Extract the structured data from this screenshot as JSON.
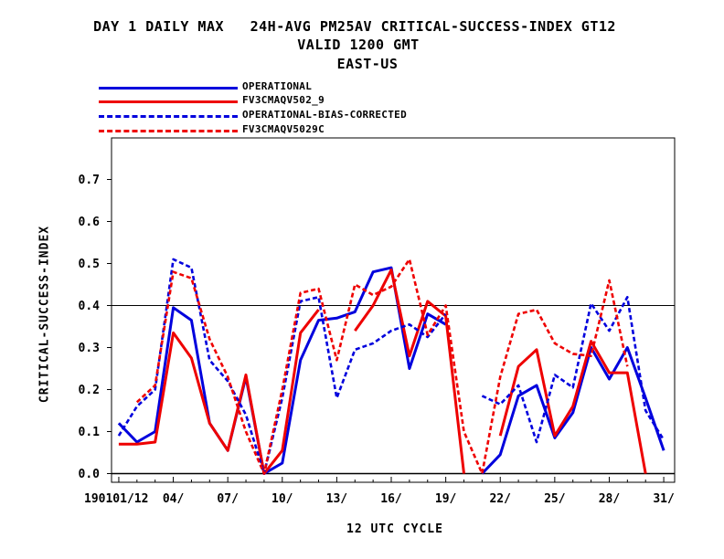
{
  "title": {
    "line1": "DAY 1 DAILY MAX   24H-AVG PM25AV CRITICAL-SUCCESS-INDEX GT12",
    "line2": "VALID 1200 GMT",
    "line3": "EAST-US"
  },
  "chart_data": {
    "type": "line",
    "xlabel": "12 UTC CYCLE",
    "ylabel": "CRITICAL-SUCCESS-INDEX",
    "ylim": [
      0.0,
      0.8
    ],
    "xlim": [
      0.6,
      31.6
    ],
    "yticks": [
      0.0,
      0.1,
      0.2,
      0.3,
      0.4,
      0.5,
      0.6,
      0.7
    ],
    "ytick_labels": [
      "0.0",
      "0.1",
      "0.2",
      "0.3",
      "0.4",
      "0.5",
      "0.6",
      "0.7"
    ],
    "xticks": [
      1,
      4,
      7,
      10,
      13,
      16,
      19,
      22,
      25,
      28,
      31
    ],
    "xtick_labels": [
      "190101/12",
      "04/",
      "07/",
      "10/",
      "13/",
      "16/",
      "19/",
      "22/",
      "25/",
      "28/",
      "31/"
    ],
    "reference_line": 0.4,
    "grid": false,
    "legend_position": "top-left, above plot",
    "x": [
      1,
      2,
      3,
      4,
      5,
      6,
      7,
      8,
      9,
      10,
      11,
      12,
      13,
      14,
      15,
      16,
      17,
      18,
      19,
      20,
      21,
      22,
      23,
      24,
      25,
      26,
      27,
      28,
      29,
      30,
      31
    ],
    "series": [
      {
        "name": "OPERATIONAL",
        "color": "#0000dd",
        "dash": "solid",
        "values": [
          0.12,
          0.075,
          0.1,
          0.395,
          0.365,
          0.12,
          0.055,
          0.23,
          0.0,
          0.025,
          0.27,
          0.365,
          0.37,
          0.385,
          0.48,
          0.49,
          0.25,
          0.38,
          0.355,
          null,
          0.0,
          0.045,
          0.185,
          0.21,
          0.085,
          0.145,
          0.3,
          0.225,
          0.3,
          0.18,
          0.055
        ]
      },
      {
        "name": "FV3CMAQV502_9",
        "color": "#ee0000",
        "dash": "solid",
        "values": [
          0.07,
          0.07,
          0.075,
          0.335,
          0.275,
          0.12,
          0.055,
          0.235,
          0.0,
          0.055,
          0.335,
          0.39,
          null,
          0.34,
          0.4,
          0.485,
          0.28,
          0.41,
          0.375,
          0.0,
          null,
          0.09,
          0.255,
          0.295,
          0.09,
          0.16,
          0.315,
          0.24,
          0.24,
          0.0,
          null
        ]
      },
      {
        "name": "OPERATIONAL-BIAS-CORRECTED",
        "color": "#0000dd",
        "dash": "dashed",
        "values": [
          0.09,
          0.16,
          0.2,
          0.51,
          0.49,
          0.27,
          0.22,
          0.14,
          0.0,
          0.18,
          0.41,
          0.42,
          0.18,
          0.295,
          0.31,
          0.34,
          0.355,
          0.325,
          0.38,
          null,
          0.185,
          0.165,
          0.21,
          0.075,
          0.235,
          0.205,
          0.405,
          0.34,
          0.42,
          0.15,
          0.08
        ]
      },
      {
        "name": "FV3CMAQV5029C",
        "color": "#ee0000",
        "dash": "dashed",
        "values": [
          null,
          0.17,
          0.21,
          0.48,
          0.465,
          0.32,
          0.23,
          0.1,
          0.0,
          0.2,
          0.43,
          0.44,
          0.27,
          0.45,
          0.425,
          0.445,
          0.51,
          0.33,
          0.4,
          0.1,
          0.0,
          0.23,
          0.38,
          0.39,
          0.31,
          0.285,
          0.28,
          0.46,
          0.255,
          null,
          null
        ]
      }
    ]
  }
}
